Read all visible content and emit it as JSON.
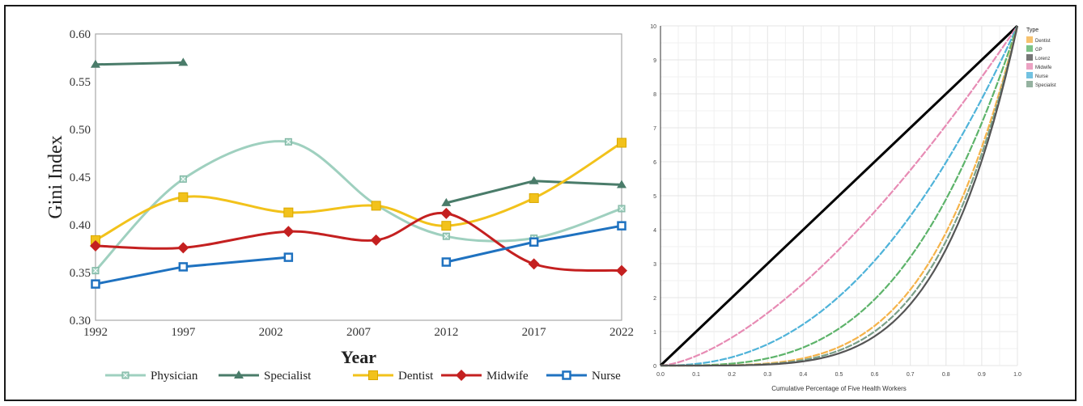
{
  "chart_data": [
    {
      "type": "line",
      "title": "",
      "xlabel": "Year",
      "ylabel": "Gini Index",
      "x": [
        1992,
        1997,
        2002,
        2007,
        2012,
        2017,
        2022
      ],
      "xticks": [
        "1992",
        "1997",
        "2002",
        "2007",
        "2012",
        "2017",
        "2022"
      ],
      "yticks": [
        "0.30",
        "0.35",
        "0.40",
        "0.45",
        "0.50",
        "0.55",
        "0.60"
      ],
      "ylim": [
        0.3,
        0.6
      ],
      "legend_position": "bottom",
      "series": [
        {
          "name": "Physician",
          "color": "#9fd0bf",
          "marker": "x",
          "smooth": true,
          "points": [
            [
              1992,
              0.352
            ],
            [
              1997,
              0.448
            ],
            [
              2003,
              0.487
            ],
            [
              2008,
              0.421
            ],
            [
              2012,
              0.388
            ],
            [
              2017,
              0.386
            ],
            [
              2022,
              0.417
            ]
          ]
        },
        {
          "name": "Specialist",
          "color": "#4a7c6a",
          "marker": "triangle",
          "smooth": false,
          "points": [
            [
              1992,
              0.568
            ],
            [
              1997,
              0.57
            ],
            [
              null,
              null
            ],
            [
              2012,
              0.423
            ],
            [
              2017,
              0.446
            ],
            [
              2022,
              0.442
            ]
          ]
        },
        {
          "name": "Dentist",
          "color": "#f2c21b",
          "marker": "square",
          "smooth": true,
          "points": [
            [
              1992,
              0.384
            ],
            [
              1997,
              0.429
            ],
            [
              2003,
              0.413
            ],
            [
              2008,
              0.42
            ],
            [
              2012,
              0.399
            ],
            [
              2017,
              0.428
            ],
            [
              2022,
              0.486
            ]
          ]
        },
        {
          "name": "Midwife",
          "color": "#c42020",
          "marker": "diamond",
          "smooth": true,
          "points": [
            [
              1992,
              0.378
            ],
            [
              1997,
              0.376
            ],
            [
              2003,
              0.393
            ],
            [
              2008,
              0.384
            ],
            [
              2012,
              0.412
            ],
            [
              2017,
              0.359
            ],
            [
              2022,
              0.352
            ]
          ]
        },
        {
          "name": "Nurse",
          "color": "#1f72c0",
          "marker": "square-open",
          "smooth": false,
          "points": [
            [
              1992,
              0.338
            ],
            [
              1997,
              0.356
            ],
            [
              2003,
              0.366
            ],
            [
              null,
              null
            ],
            [
              2012,
              0.361
            ],
            [
              2017,
              0.382
            ],
            [
              2022,
              0.399
            ]
          ]
        }
      ]
    },
    {
      "type": "line",
      "title": "",
      "xlabel": "Cumulative Percentage of Five Health Workers",
      "ylabel": "",
      "xlim": [
        0,
        1
      ],
      "ylim": [
        0,
        1
      ],
      "xticks": [
        "0.0",
        "0.1",
        "0.2",
        "0.3",
        "0.4",
        "0.5",
        "0.6",
        "0.7",
        "0.8",
        "0.9",
        "1.0"
      ],
      "yticks": [
        "0",
        "1",
        "2",
        "3",
        "4",
        "5",
        "6",
        "7",
        "8",
        "9",
        "10"
      ],
      "grid": true,
      "legend_title": "Type",
      "legend_position": "top-right",
      "series": [
        {
          "name": "Dentist",
          "color": "#f5b34a",
          "curve_exponent": 4.2
        },
        {
          "name": "GP",
          "color": "#5db36a",
          "curve_exponent": 3.2
        },
        {
          "name": "Lorenz",
          "color": "#555555",
          "curve_exponent": 4.8
        },
        {
          "name": "Midwife",
          "color": "#e78bb4",
          "curve_exponent": 1.55
        },
        {
          "name": "Nurse",
          "color": "#4fb3d9",
          "curve_exponent": 2.3
        },
        {
          "name": "Specialist",
          "color": "#7a9f88",
          "curve_exponent": 4.5
        }
      ],
      "equality_line": {
        "color": "#000000",
        "points": [
          [
            0,
            0
          ],
          [
            1,
            1
          ]
        ]
      }
    }
  ]
}
